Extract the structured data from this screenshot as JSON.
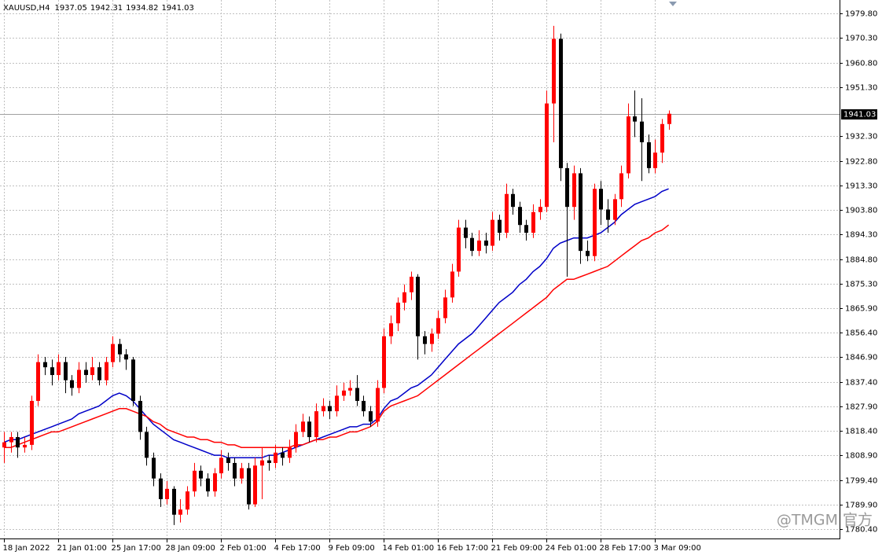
{
  "chart_data": {
    "type": "candlestick",
    "title": "XAUUSD,H4",
    "watermark": "@TMGM 官方",
    "up_color": "#ff0000",
    "down_color": "#000000",
    "current_price": 1941.03,
    "grid": true,
    "ylim": [
      1776.8,
      1985.0
    ],
    "xlim": [
      -0.6,
      123.2
    ],
    "yticks": [
      {
        "value": 1979.8,
        "label": "1979.80"
      },
      {
        "value": 1970.3,
        "label": "1970.30"
      },
      {
        "value": 1960.8,
        "label": "1960.80"
      },
      {
        "value": 1951.3,
        "label": "1951.30"
      },
      {
        "value": 1932.3,
        "label": "1932.30"
      },
      {
        "value": 1922.8,
        "label": "1922.80"
      },
      {
        "value": 1913.3,
        "label": "1913.30"
      },
      {
        "value": 1903.8,
        "label": "1903.80"
      },
      {
        "value": 1894.3,
        "label": "1894.30"
      },
      {
        "value": 1884.8,
        "label": "1884.80"
      },
      {
        "value": 1875.3,
        "label": "1875.30"
      },
      {
        "value": 1865.9,
        "label": "1865.90"
      },
      {
        "value": 1856.4,
        "label": "1856.40"
      },
      {
        "value": 1846.9,
        "label": "1846.90"
      },
      {
        "value": 1837.4,
        "label": "1837.40"
      },
      {
        "value": 1827.9,
        "label": "1827.90"
      },
      {
        "value": 1818.4,
        "label": "1818.40"
      },
      {
        "value": 1808.9,
        "label": "1808.90"
      },
      {
        "value": 1799.4,
        "label": "1799.40"
      },
      {
        "value": 1789.9,
        "label": "1789.90"
      },
      {
        "value": 1780.4,
        "label": "1780.40"
      }
    ],
    "xticks": [
      {
        "value": 0,
        "label": "18 Jan 2022"
      },
      {
        "value": 8,
        "label": "21 Jan 01:00"
      },
      {
        "value": 16,
        "label": "25 Jan 17:00"
      },
      {
        "value": 24,
        "label": "28 Jan 09:00"
      },
      {
        "value": 32,
        "label": "2 Feb 01:00"
      },
      {
        "value": 40,
        "label": "4 Feb 17:00"
      },
      {
        "value": 48,
        "label": "9 Feb 09:00"
      },
      {
        "value": 56,
        "label": "14 Feb 01:00"
      },
      {
        "value": 64,
        "label": "16 Feb 17:00"
      },
      {
        "value": 72,
        "label": "21 Feb 09:00"
      },
      {
        "value": 80,
        "label": "24 Feb 01:00"
      },
      {
        "value": 88,
        "label": "28 Feb 17:00"
      },
      {
        "value": 96,
        "label": "3 Mar 09:00"
      }
    ],
    "candles": [
      [
        1812,
        1818,
        1806,
        1814
      ],
      [
        1814,
        1818,
        1810,
        1816
      ],
      [
        1816,
        1818,
        1808,
        1812
      ],
      [
        1812,
        1816,
        1810,
        1813
      ],
      [
        1813,
        1832,
        1811,
        1830
      ],
      [
        1830,
        1848,
        1828,
        1845
      ],
      [
        1845,
        1847,
        1840,
        1843
      ],
      [
        1843,
        1846,
        1836,
        1840
      ],
      [
        1840,
        1848,
        1838,
        1845
      ],
      [
        1845,
        1847,
        1833,
        1838
      ],
      [
        1838,
        1840,
        1832,
        1835
      ],
      [
        1835,
        1845,
        1833,
        1842
      ],
      [
        1842,
        1845,
        1837,
        1840
      ],
      [
        1840,
        1847,
        1838,
        1843
      ],
      [
        1843,
        1845,
        1836,
        1838
      ],
      [
        1838,
        1847,
        1836,
        1845
      ],
      [
        1845,
        1855,
        1843,
        1852
      ],
      [
        1852,
        1854,
        1845,
        1848
      ],
      [
        1848,
        1850,
        1842,
        1846
      ],
      [
        1846,
        1847,
        1828,
        1830
      ],
      [
        1830,
        1832,
        1815,
        1818
      ],
      [
        1818,
        1820,
        1805,
        1808
      ],
      [
        1808,
        1810,
        1797,
        1800
      ],
      [
        1800,
        1802,
        1789,
        1792
      ],
      [
        1792,
        1799,
        1790,
        1796
      ],
      [
        1796,
        1797,
        1782,
        1786
      ],
      [
        1786,
        1792,
        1783,
        1788
      ],
      [
        1788,
        1797,
        1786,
        1795
      ],
      [
        1795,
        1806,
        1793,
        1803
      ],
      [
        1803,
        1805,
        1797,
        1800
      ],
      [
        1800,
        1802,
        1793,
        1795
      ],
      [
        1795,
        1804,
        1793,
        1802
      ],
      [
        1802,
        1811,
        1800,
        1808
      ],
      [
        1808,
        1810,
        1803,
        1806
      ],
      [
        1806,
        1808,
        1797,
        1800
      ],
      [
        1800,
        1806,
        1798,
        1804
      ],
      [
        1804,
        1806,
        1788,
        1790
      ],
      [
        1790,
        1808,
        1789,
        1805
      ],
      [
        1805,
        1812,
        1792,
        1807
      ],
      [
        1807,
        1809,
        1803,
        1806
      ],
      [
        1806,
        1813,
        1804,
        1810
      ],
      [
        1810,
        1812,
        1805,
        1808
      ],
      [
        1808,
        1815,
        1806,
        1812
      ],
      [
        1812,
        1821,
        1810,
        1818
      ],
      [
        1818,
        1825,
        1816,
        1822
      ],
      [
        1822,
        1824,
        1814,
        1816
      ],
      [
        1816,
        1829,
        1814,
        1826
      ],
      [
        1826,
        1831,
        1824,
        1828
      ],
      [
        1828,
        1830,
        1823,
        1826
      ],
      [
        1826,
        1836,
        1824,
        1832
      ],
      [
        1832,
        1837,
        1830,
        1834
      ],
      [
        1834,
        1838,
        1832,
        1835
      ],
      [
        1835,
        1840,
        1828,
        1830
      ],
      [
        1830,
        1832,
        1824,
        1826
      ],
      [
        1826,
        1828,
        1820,
        1822
      ],
      [
        1822,
        1838,
        1820,
        1835
      ],
      [
        1835,
        1858,
        1833,
        1855
      ],
      [
        1855,
        1863,
        1852,
        1860
      ],
      [
        1860,
        1870,
        1857,
        1868
      ],
      [
        1868,
        1875,
        1865,
        1872
      ],
      [
        1872,
        1880,
        1869,
        1878
      ],
      [
        1878,
        1879,
        1846,
        1855
      ],
      [
        1855,
        1857,
        1848,
        1852
      ],
      [
        1852,
        1858,
        1849,
        1856
      ],
      [
        1856,
        1865,
        1854,
        1862
      ],
      [
        1862,
        1873,
        1860,
        1870
      ],
      [
        1870,
        1883,
        1868,
        1880
      ],
      [
        1880,
        1900,
        1878,
        1897
      ],
      [
        1897,
        1900,
        1889,
        1893
      ],
      [
        1893,
        1895,
        1886,
        1888
      ],
      [
        1888,
        1896,
        1886,
        1892
      ],
      [
        1892,
        1895,
        1887,
        1890
      ],
      [
        1890,
        1903,
        1888,
        1900
      ],
      [
        1900,
        1902,
        1892,
        1895
      ],
      [
        1895,
        1914,
        1893,
        1910
      ],
      [
        1910,
        1912,
        1902,
        1905
      ],
      [
        1905,
        1907,
        1895,
        1898
      ],
      [
        1898,
        1900,
        1892,
        1895
      ],
      [
        1895,
        1906,
        1893,
        1903
      ],
      [
        1903,
        1908,
        1900,
        1905
      ],
      [
        1905,
        1950,
        1903,
        1945
      ],
      [
        1945,
        1975,
        1930,
        1970
      ],
      [
        1970,
        1972,
        1915,
        1920
      ],
      [
        1920,
        1922,
        1878,
        1905
      ],
      [
        1905,
        1921,
        1900,
        1918
      ],
      [
        1918,
        1920,
        1883,
        1888
      ],
      [
        1888,
        1892,
        1884,
        1886
      ],
      [
        1886,
        1914,
        1884,
        1912
      ],
      [
        1912,
        1915,
        1898,
        1904
      ],
      [
        1904,
        1908,
        1895,
        1900
      ],
      [
        1900,
        1910,
        1898,
        1908
      ],
      [
        1908,
        1921,
        1905,
        1918
      ],
      [
        1918,
        1945,
        1916,
        1940
      ],
      [
        1940,
        1950,
        1932,
        1938
      ],
      [
        1938,
        1947,
        1915,
        1930
      ],
      [
        1930,
        1933,
        1918,
        1920
      ],
      [
        1920,
        1931,
        1918,
        1926
      ],
      [
        1926,
        1939,
        1922,
        1937.05
      ],
      [
        1937.05,
        1942.31,
        1934.82,
        1941.03
      ]
    ],
    "moving_averages": [
      {
        "color": "#0000c8",
        "values": [
          1814,
          1815,
          1815,
          1816,
          1817,
          1818,
          1819,
          1820,
          1821,
          1822,
          1823,
          1825,
          1826,
          1827,
          1828,
          1830,
          1832,
          1833,
          1832,
          1830,
          1827,
          1824,
          1821,
          1819,
          1817,
          1815,
          1814,
          1813,
          1812,
          1811,
          1810,
          1809,
          1809,
          1808,
          1808,
          1808,
          1808,
          1808,
          1808,
          1809,
          1809,
          1810,
          1811,
          1812,
          1813,
          1814,
          1815,
          1816,
          1817,
          1818,
          1819,
          1820,
          1820,
          1821,
          1821,
          1823,
          1827,
          1830,
          1831,
          1833,
          1835,
          1836,
          1838,
          1840,
          1843,
          1846,
          1849,
          1852,
          1854,
          1856,
          1859,
          1862,
          1865,
          1868,
          1870,
          1872,
          1875,
          1877,
          1880,
          1882,
          1885,
          1889,
          1891,
          1892,
          1893,
          1893,
          1893,
          1894,
          1895,
          1897,
          1899,
          1902,
          1904,
          1906,
          1907,
          1908,
          1909,
          1911,
          1912
        ]
      },
      {
        "color": "#ff0000",
        "values": [
          1812,
          1812,
          1813,
          1814,
          1815,
          1816,
          1817,
          1818,
          1818,
          1819,
          1820,
          1821,
          1822,
          1823,
          1824,
          1825,
          1826,
          1827,
          1827,
          1826,
          1825,
          1824,
          1822,
          1821,
          1819,
          1818,
          1817,
          1816,
          1816,
          1815,
          1815,
          1814,
          1814,
          1813,
          1813,
          1812,
          1812,
          1812,
          1812,
          1812,
          1812,
          1812,
          1812,
          1813,
          1813,
          1814,
          1815,
          1815,
          1816,
          1816,
          1817,
          1818,
          1818,
          1819,
          1820,
          1822,
          1826,
          1828,
          1829,
          1830,
          1831,
          1832,
          1834,
          1836,
          1838,
          1840,
          1842,
          1844,
          1846,
          1848,
          1850,
          1852,
          1854,
          1856,
          1858,
          1860,
          1862,
          1864,
          1866,
          1868,
          1870,
          1873,
          1875,
          1877,
          1877,
          1878,
          1879,
          1880,
          1881,
          1882,
          1884,
          1886,
          1888,
          1890,
          1892,
          1893,
          1895,
          1896,
          1898
        ]
      }
    ]
  }
}
